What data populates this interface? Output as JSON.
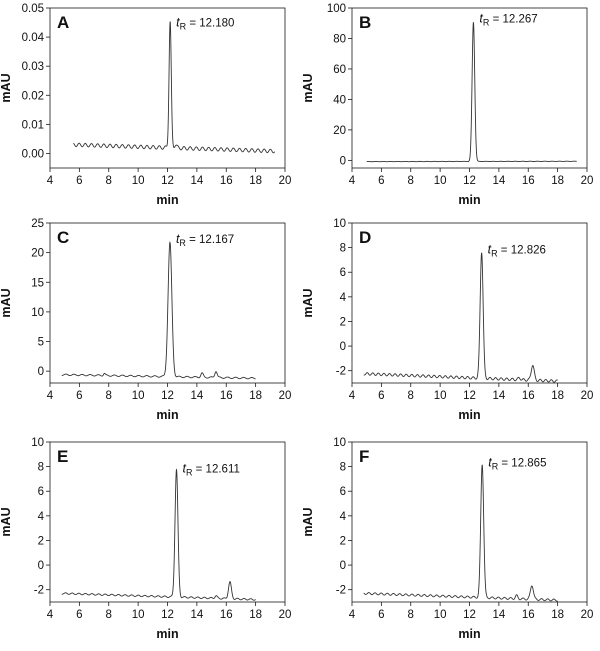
{
  "chart_data": [
    {
      "panel": "A",
      "type": "line",
      "xlabel": "min",
      "ylabel": "mAU",
      "xlim": [
        4,
        20
      ],
      "ylim": [
        -0.005,
        0.05
      ],
      "xticks": [
        "4",
        "6",
        "8",
        "10",
        "12",
        "14",
        "16",
        "18",
        "20"
      ],
      "yticks": [
        "0.00",
        "0.01",
        "0.02",
        "0.03",
        "0.04",
        "0.05"
      ],
      "annotation": {
        "t": "t",
        "sub": "R",
        "text": " = 12.180",
        "x": 12.18,
        "y": 0.044
      },
      "trace": {
        "range": [
          5.6,
          19.3
        ],
        "baseline_start": 0.003,
        "baseline_end": 0.0008,
        "noise": 0.0006,
        "noise_period": 0.42,
        "peaks": [
          {
            "rt": 12.18,
            "height": 0.0435,
            "width": 0.075
          },
          {
            "rt": 12.55,
            "height": 0.0012,
            "width": 0.08
          }
        ]
      },
      "grid": false,
      "legend": "none"
    },
    {
      "panel": "B",
      "type": "line",
      "xlabel": "min",
      "ylabel": "mAU",
      "xlim": [
        4,
        20
      ],
      "ylim": [
        -5,
        100
      ],
      "xticks": [
        "4",
        "6",
        "8",
        "10",
        "12",
        "14",
        "16",
        "18",
        "20"
      ],
      "yticks": [
        "0",
        "20",
        "40",
        "60",
        "80",
        "100"
      ],
      "annotation": {
        "t": "t",
        "sub": "R",
        "text": " = 12.267",
        "x": 12.267,
        "y": 91
      },
      "trace": {
        "range": [
          5.0,
          19.3
        ],
        "baseline_start": -0.8,
        "baseline_end": -0.6,
        "noise": 0.1,
        "noise_period": 0.5,
        "peaks": [
          {
            "rt": 12.267,
            "height": 91.5,
            "width": 0.09
          }
        ]
      },
      "grid": false,
      "legend": "none"
    },
    {
      "panel": "C",
      "type": "line",
      "xlabel": "min",
      "ylabel": "mAU",
      "xlim": [
        4,
        20
      ],
      "ylim": [
        -2,
        25
      ],
      "xticks": [
        "4",
        "6",
        "8",
        "10",
        "12",
        "14",
        "16",
        "18",
        "20"
      ],
      "yticks": [
        "0",
        "5",
        "10",
        "15",
        "20",
        "25"
      ],
      "annotation": {
        "t": "t",
        "sub": "R",
        "text": " = 12.167",
        "x": 12.167,
        "y": 21.8
      },
      "trace": {
        "range": [
          4.8,
          18.0
        ],
        "baseline_start": -0.6,
        "baseline_end": -1.2,
        "noise": 0.12,
        "noise_period": 0.55,
        "peaks": [
          {
            "rt": 12.167,
            "height": 22.6,
            "width": 0.13
          },
          {
            "rt": 14.35,
            "height": 0.7,
            "width": 0.08
          },
          {
            "rt": 15.3,
            "height": 1.1,
            "width": 0.08
          },
          {
            "rt": 7.7,
            "height": 0.35,
            "width": 0.06
          }
        ]
      },
      "grid": false,
      "legend": "none"
    },
    {
      "panel": "D",
      "type": "line",
      "xlabel": "min",
      "ylabel": "mAU",
      "xlim": [
        4,
        20
      ],
      "ylim": [
        -3,
        10
      ],
      "xticks": [
        "4",
        "6",
        "8",
        "10",
        "12",
        "14",
        "16",
        "18",
        "20"
      ],
      "yticks": [
        "-2",
        "0",
        "2",
        "4",
        "6",
        "8",
        "10"
      ],
      "annotation": {
        "t": "t",
        "sub": "R",
        "text": " = 12.826",
        "x": 12.826,
        "y": 7.6
      },
      "trace": {
        "range": [
          4.8,
          18.0
        ],
        "baseline_start": -2.25,
        "baseline_end": -2.85,
        "noise": 0.1,
        "noise_period": 0.38,
        "peaks": [
          {
            "rt": 12.826,
            "height": 10.3,
            "width": 0.1
          },
          {
            "rt": 16.3,
            "height": 1.25,
            "width": 0.1
          },
          {
            "rt": 15.4,
            "height": 0.15,
            "width": 0.08
          }
        ]
      },
      "grid": false,
      "legend": "none"
    },
    {
      "panel": "E",
      "type": "line",
      "xlabel": "min",
      "ylabel": "mAU",
      "xlim": [
        4,
        20
      ],
      "ylim": [
        -3,
        10
      ],
      "xticks": [
        "4",
        "6",
        "8",
        "10",
        "12",
        "14",
        "16",
        "18",
        "20"
      ],
      "yticks": [
        "-2",
        "0",
        "2",
        "4",
        "6",
        "8",
        "10"
      ],
      "annotation": {
        "t": "t",
        "sub": "R",
        "text": " = 12.611",
        "x": 12.611,
        "y": 7.6
      },
      "trace": {
        "range": [
          4.8,
          18.0
        ],
        "baseline_start": -2.3,
        "baseline_end": -2.8,
        "noise": 0.06,
        "noise_period": 0.45,
        "peaks": [
          {
            "rt": 12.611,
            "height": 10.35,
            "width": 0.1
          },
          {
            "rt": 16.25,
            "height": 1.35,
            "width": 0.1
          },
          {
            "rt": 15.3,
            "height": 0.2,
            "width": 0.08
          }
        ]
      },
      "grid": false,
      "legend": "none"
    },
    {
      "panel": "F",
      "type": "line",
      "xlabel": "min",
      "ylabel": "mAU",
      "xlim": [
        4,
        20
      ],
      "ylim": [
        -3,
        10
      ],
      "xticks": [
        "4",
        "6",
        "8",
        "10",
        "12",
        "14",
        "16",
        "18",
        "20"
      ],
      "yticks": [
        "-2",
        "0",
        "2",
        "4",
        "6",
        "8",
        "10"
      ],
      "annotation": {
        "t": "t",
        "sub": "R",
        "text": " = 12.865",
        "x": 12.865,
        "y": 8.1
      },
      "trace": {
        "range": [
          4.8,
          18.0
        ],
        "baseline_start": -2.3,
        "baseline_end": -2.85,
        "noise": 0.08,
        "noise_period": 0.42,
        "peaks": [
          {
            "rt": 12.865,
            "height": 10.85,
            "width": 0.1
          },
          {
            "rt": 16.25,
            "height": 1.15,
            "width": 0.1
          },
          {
            "rt": 15.2,
            "height": 0.25,
            "width": 0.08
          }
        ]
      },
      "grid": false,
      "legend": "none"
    }
  ],
  "colors": {
    "axis": "#1a1a1a",
    "trace": "#333333",
    "text": "#111111"
  }
}
